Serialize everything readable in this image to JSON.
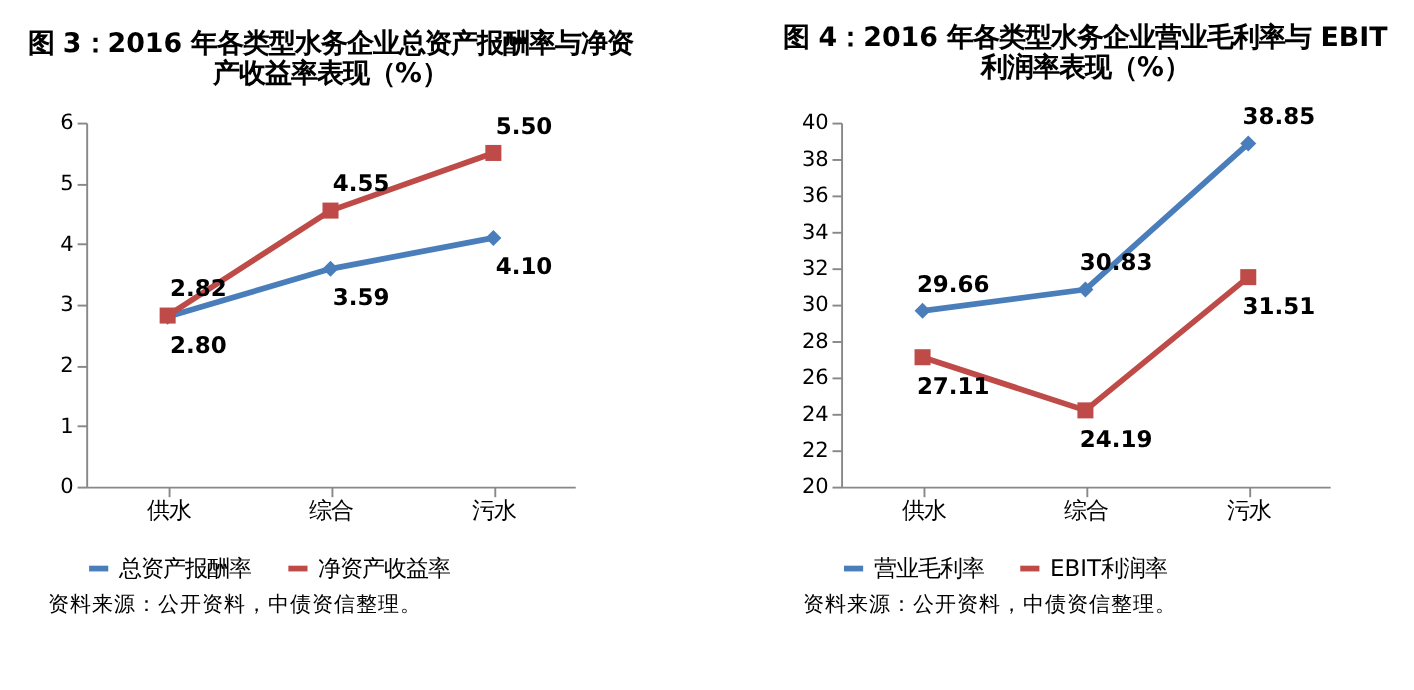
{
  "chart_data": [
    {
      "type": "line",
      "title": "图 3：2016 年各类型水务企业总资产报酬率与净资产收益率表现（%）",
      "categories": [
        "供水",
        "综合",
        "污水"
      ],
      "series": [
        {
          "name": "总资产报酬率",
          "color": "#4a7ebb",
          "marker": "diamond",
          "values": [
            2.8,
            3.59,
            4.1
          ],
          "value_labels": [
            "2.80",
            "3.59",
            "4.10"
          ]
        },
        {
          "name": "净资产收益率",
          "color": "#be4b48",
          "marker": "square",
          "values": [
            2.82,
            4.55,
            5.5
          ],
          "value_labels": [
            "2.82",
            "4.55",
            "5.50"
          ]
        }
      ],
      "ylim": [
        0,
        6
      ],
      "yticks": [
        0,
        1,
        2,
        3,
        4,
        5,
        6
      ],
      "grid": false,
      "legend": "bottom",
      "line_style": "solid",
      "data_labels": true,
      "annotations": [
        "资料来源：公开资料，中债资信整理。"
      ]
    },
    {
      "type": "line",
      "title": "图 4：2016 年各类型水务企业营业毛利率与 EBIT 利润率表现（%）",
      "categories": [
        "供水",
        "综合",
        "污水"
      ],
      "series": [
        {
          "name": "营业毛利率",
          "color": "#4a7ebb",
          "marker": "diamond",
          "values": [
            29.66,
            30.83,
            38.85
          ],
          "value_labels": [
            "29.66",
            "30.83",
            "38.85"
          ]
        },
        {
          "name": "EBIT利润率",
          "color": "#be4b48",
          "marker": "square",
          "values": [
            27.11,
            24.19,
            31.51
          ],
          "value_labels": [
            "27.11",
            "24.19",
            "31.51"
          ]
        }
      ],
      "ylim": [
        20,
        40
      ],
      "yticks": [
        20,
        22,
        24,
        26,
        28,
        30,
        32,
        34,
        36,
        38,
        40
      ],
      "grid": false,
      "legend": "bottom",
      "line_style": "solid",
      "data_labels": true,
      "annotations": [
        "资料来源：公开资料，中债资信整理。"
      ]
    }
  ]
}
